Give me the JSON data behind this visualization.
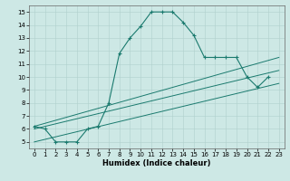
{
  "xlabel": "Humidex (Indice chaleur)",
  "bg_color": "#cde8e5",
  "grid_color": "#b0d0cc",
  "line_color": "#1a7a6e",
  "xlim": [
    -0.5,
    23.5
  ],
  "ylim": [
    4.5,
    15.5
  ],
  "xticks": [
    0,
    1,
    2,
    3,
    4,
    5,
    6,
    7,
    8,
    9,
    10,
    11,
    12,
    13,
    14,
    15,
    16,
    17,
    18,
    19,
    20,
    21,
    22,
    23
  ],
  "yticks": [
    5,
    6,
    7,
    8,
    9,
    10,
    11,
    12,
    13,
    14,
    15
  ],
  "curve1_x": [
    0,
    1,
    2,
    3,
    4,
    5,
    6,
    7,
    8,
    9,
    10,
    11,
    12,
    13,
    14,
    15,
    16,
    17,
    18,
    19,
    20,
    21,
    22
  ],
  "curve1_y": [
    6.2,
    6.0,
    5.0,
    5.0,
    5.0,
    6.0,
    6.2,
    8.0,
    11.8,
    13.0,
    13.9,
    15.0,
    15.0,
    15.0,
    14.2,
    13.2,
    11.5,
    11.5,
    11.5,
    11.5,
    10.0,
    9.2,
    10.0
  ],
  "line2_x": [
    0,
    23
  ],
  "line2_y": [
    6.2,
    11.5
  ],
  "line3_x": [
    0,
    23
  ],
  "line3_y": [
    6.0,
    10.5
  ],
  "line4_x": [
    0,
    23
  ],
  "line4_y": [
    5.0,
    9.5
  ]
}
